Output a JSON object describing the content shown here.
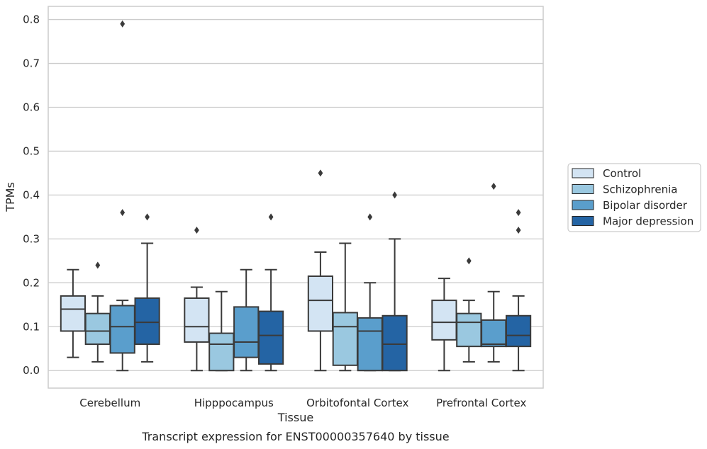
{
  "chart_data": {
    "type": "box",
    "title": "",
    "caption": "Transcript expression for ENST00000357640 by tissue",
    "xlabel": "Tissue",
    "ylabel": "TPMs",
    "ylim": [
      -0.04,
      0.83
    ],
    "yticks": [
      0.0,
      0.1,
      0.2,
      0.3,
      0.4,
      0.5,
      0.6,
      0.7,
      0.8
    ],
    "ytick_labels": [
      "0.0",
      "0.1",
      "0.2",
      "0.3",
      "0.4",
      "0.5",
      "0.6",
      "0.7",
      "0.8"
    ],
    "grid": "horizontal",
    "legend_position": "right",
    "categories": [
      "Cerebellum",
      "Hipppocampus",
      "Orbitofontal Cortex",
      "Prefrontal Cortex"
    ],
    "series": [
      {
        "name": "Control",
        "color": "#d3e4f3",
        "boxes": [
          {
            "whisker_low": 0.03,
            "q1": 0.09,
            "median": 0.14,
            "q3": 0.17,
            "whisker_high": 0.23,
            "outliers": []
          },
          {
            "whisker_low": 0.0,
            "q1": 0.065,
            "median": 0.1,
            "q3": 0.165,
            "whisker_high": 0.19,
            "outliers": [
              0.32
            ]
          },
          {
            "whisker_low": 0.0,
            "q1": 0.09,
            "median": 0.16,
            "q3": 0.215,
            "whisker_high": 0.27,
            "outliers": [
              0.45
            ]
          },
          {
            "whisker_low": 0.0,
            "q1": 0.07,
            "median": 0.11,
            "q3": 0.16,
            "whisker_high": 0.21,
            "outliers": []
          }
        ]
      },
      {
        "name": "Schizophrenia",
        "color": "#9ac8e0",
        "boxes": [
          {
            "whisker_low": 0.02,
            "q1": 0.06,
            "median": 0.09,
            "q3": 0.13,
            "whisker_high": 0.17,
            "outliers": [
              0.24
            ]
          },
          {
            "whisker_low": 0.0,
            "q1": 0.0,
            "median": 0.06,
            "q3": 0.085,
            "whisker_high": 0.18,
            "outliers": []
          },
          {
            "whisker_low": 0.0,
            "q1": 0.012,
            "median": 0.1,
            "q3": 0.132,
            "whisker_high": 0.29,
            "outliers": []
          },
          {
            "whisker_low": 0.02,
            "q1": 0.055,
            "median": 0.11,
            "q3": 0.13,
            "whisker_high": 0.16,
            "outliers": [
              0.25
            ]
          }
        ]
      },
      {
        "name": "Bipolar disorder",
        "color": "#5a9ecc",
        "boxes": [
          {
            "whisker_low": 0.0,
            "q1": 0.04,
            "median": 0.1,
            "q3": 0.148,
            "whisker_high": 0.16,
            "outliers": [
              0.79,
              0.36
            ]
          },
          {
            "whisker_low": 0.0,
            "q1": 0.03,
            "median": 0.065,
            "q3": 0.145,
            "whisker_high": 0.23,
            "outliers": []
          },
          {
            "whisker_low": 0.0,
            "q1": 0.0,
            "median": 0.09,
            "q3": 0.12,
            "whisker_high": 0.2,
            "outliers": [
              0.35
            ]
          },
          {
            "whisker_low": 0.02,
            "q1": 0.055,
            "median": 0.06,
            "q3": 0.115,
            "whisker_high": 0.18,
            "outliers": [
              0.42
            ]
          }
        ]
      },
      {
        "name": "Major depression",
        "color": "#2464a4",
        "boxes": [
          {
            "whisker_low": 0.02,
            "q1": 0.06,
            "median": 0.11,
            "q3": 0.165,
            "whisker_high": 0.29,
            "outliers": [
              0.35
            ]
          },
          {
            "whisker_low": 0.0,
            "q1": 0.015,
            "median": 0.08,
            "q3": 0.135,
            "whisker_high": 0.23,
            "outliers": [
              0.35
            ]
          },
          {
            "whisker_low": 0.0,
            "q1": 0.0,
            "median": 0.06,
            "q3": 0.125,
            "whisker_high": 0.3,
            "outliers": [
              0.4
            ]
          },
          {
            "whisker_low": 0.0,
            "q1": 0.055,
            "median": 0.08,
            "q3": 0.125,
            "whisker_high": 0.17,
            "outliers": [
              0.36,
              0.32
            ]
          }
        ]
      }
    ]
  }
}
